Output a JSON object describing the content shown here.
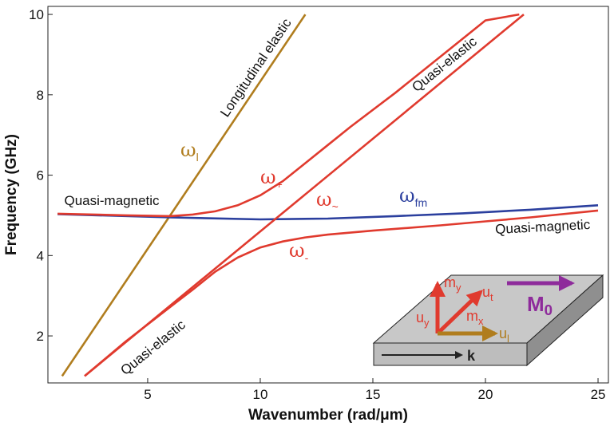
{
  "chart_data": {
    "type": "line",
    "x_label": "Wavenumber (rad/μm)",
    "y_label": "Frequency (GHz)",
    "xlim": [
      0.57,
      25.46
    ],
    "ylim": [
      0.83,
      10.2
    ],
    "xticks": [
      5,
      10,
      15,
      20,
      25
    ],
    "yticks": [
      2,
      4,
      6,
      8,
      10
    ],
    "series": [
      {
        "color": "#b07d1e",
        "x": [
          1.2,
          12
        ],
        "values": [
          1.0,
          10.0
        ]
      },
      {
        "color": "#2b3f9e",
        "x": [
          1,
          6,
          10,
          13,
          16,
          19,
          22,
          25
        ],
        "values": [
          5.03,
          4.95,
          4.9,
          4.92,
          4.98,
          5.05,
          5.14,
          5.25
        ]
      },
      {
        "color": "#e03a2e",
        "x": [
          2.2,
          21.7
        ],
        "values": [
          1.0,
          10.0
        ]
      },
      {
        "color": "#e03a2e",
        "x": [
          1,
          4,
          6,
          7,
          8,
          9,
          10,
          11,
          12,
          13,
          14,
          16,
          18,
          20,
          21.5
        ],
        "values": [
          5.04,
          5.0,
          4.98,
          5.02,
          5.1,
          5.25,
          5.5,
          5.85,
          6.3,
          6.75,
          7.2,
          8.05,
          8.95,
          9.85,
          10.0
        ]
      },
      {
        "color": "#e03a2e",
        "x": [
          2.2,
          4,
          6,
          7,
          8,
          9,
          10,
          11,
          12,
          13,
          15,
          18,
          20,
          22,
          25
        ],
        "values": [
          1.0,
          1.85,
          2.72,
          3.15,
          3.6,
          3.95,
          4.2,
          4.35,
          4.45,
          4.52,
          4.62,
          4.75,
          4.85,
          4.95,
          5.12
        ]
      }
    ],
    "annotations": [
      {
        "text": "Longitudinal elastic"
      },
      {
        "text": "Quasi-elastic"
      },
      {
        "text": "Quasi-elastic"
      },
      {
        "text": "Quasi-magnetic"
      },
      {
        "text": "Quasi-magnetic"
      }
    ],
    "mode_labels": [
      {
        "symbol": "ω",
        "sub": "l",
        "color": "#b07d1e"
      },
      {
        "symbol": "ω",
        "sub": "+",
        "color": "#e03a2e"
      },
      {
        "symbol": "ω",
        "sub": "~",
        "color": "#e03a2e"
      },
      {
        "symbol": "ω",
        "sub": "fm",
        "color": "#2b3f9e"
      },
      {
        "symbol": "ω",
        "sub": "-",
        "color": "#e03a2e"
      }
    ],
    "inset": {
      "labels": [
        {
          "text": "m",
          "sub": "y"
        },
        {
          "text": "u",
          "sub": "t"
        },
        {
          "text": "u",
          "sub": "y"
        },
        {
          "text": "m",
          "sub": "x"
        },
        {
          "text": "u",
          "sub": "l"
        },
        {
          "text": "M",
          "sub": "0"
        },
        {
          "text": "k",
          "sub": ""
        }
      ]
    }
  }
}
